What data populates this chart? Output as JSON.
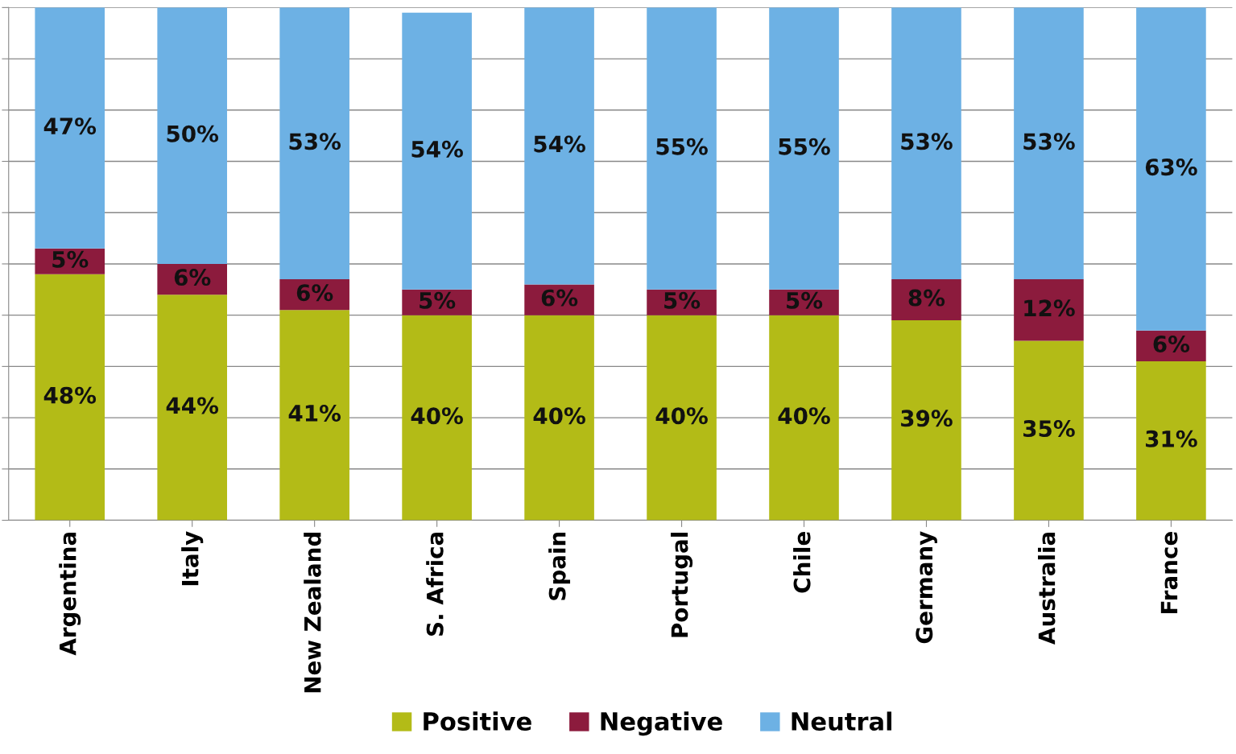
{
  "chart_data": {
    "type": "bar",
    "stacked": true,
    "categories": [
      "Argentina",
      "Italy",
      "New Zealand",
      "S. Africa",
      "Spain",
      "Portugal",
      "Chile",
      "Germany",
      "Australia",
      "France"
    ],
    "series": [
      {
        "name": "Positive",
        "color": "#b3bb17",
        "values": [
          48,
          44,
          41,
          40,
          40,
          40,
          40,
          39,
          35,
          31
        ],
        "value_labels": [
          "48%",
          "44%",
          "41%",
          "40%",
          "40%",
          "40%",
          "40%",
          "39%",
          "35%",
          "31%"
        ]
      },
      {
        "name": "Negative",
        "color": "#8c1b3d",
        "values": [
          5,
          6,
          6,
          5,
          6,
          5,
          5,
          8,
          12,
          6
        ],
        "value_labels": [
          "5%",
          "6%",
          "6%",
          "5%",
          "6%",
          "5%",
          "5%",
          "8%",
          "12%",
          "6%"
        ]
      },
      {
        "name": "Neutral",
        "color": "#6db1e4",
        "values": [
          47,
          50,
          53,
          54,
          54,
          55,
          55,
          53,
          53,
          63
        ],
        "value_labels": [
          "47%",
          "50%",
          "53%",
          "54%",
          "54%",
          "55%",
          "55%",
          "53%",
          "53%",
          "63%"
        ]
      }
    ],
    "tick_labels": "x",
    "grid": "y",
    "legend": "bottom"
  }
}
